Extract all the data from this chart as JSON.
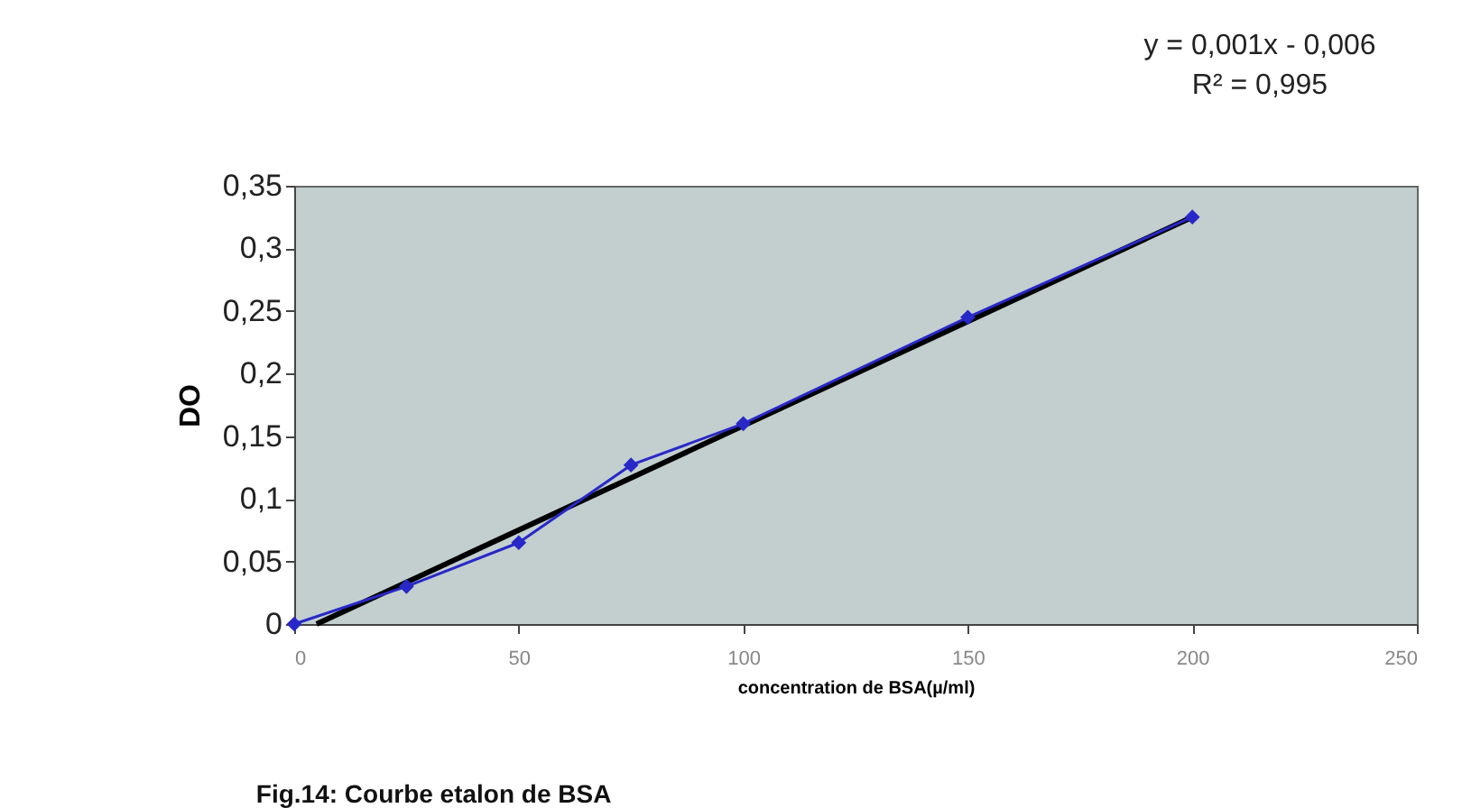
{
  "chart_data": {
    "type": "line",
    "title": "Fig.14: Courbe etalon de BSA",
    "xlabel": "concentration de BSA(µ/ml)",
    "ylabel": "DO",
    "annotations": [
      "y = 0,001x - 0,006",
      "R² = 0,995"
    ],
    "x": [
      0,
      25,
      50,
      75,
      100,
      150,
      200
    ],
    "series": [
      {
        "color": "#2828c8",
        "values": [
          0,
          0.03,
          0.065,
          0.127,
          0.16,
          0.245,
          0.325
        ]
      },
      {
        "type": "line",
        "color": "#000000",
        "marker": "none",
        "x": [
          5,
          200
        ],
        "values": [
          0,
          0.325
        ]
      }
    ],
    "xlim": [
      0,
      250
    ],
    "xticks": [
      0,
      50,
      100,
      150,
      200,
      250
    ],
    "ylim": [
      0,
      0.35
    ],
    "yticks": [
      {
        "value": 0,
        "label": "0"
      },
      {
        "value": 0.05,
        "label": "0,05"
      },
      {
        "value": 0.1,
        "label": "0,1"
      },
      {
        "value": 0.15,
        "label": "0,15"
      },
      {
        "value": 0.2,
        "label": "0,2"
      },
      {
        "value": 0.25,
        "label": "0,25"
      },
      {
        "value": 0.3,
        "label": "0,3"
      },
      {
        "value": 0.35,
        "label": "0,35"
      }
    ],
    "grid": false,
    "marker": "diamond",
    "line_style": "solid"
  }
}
